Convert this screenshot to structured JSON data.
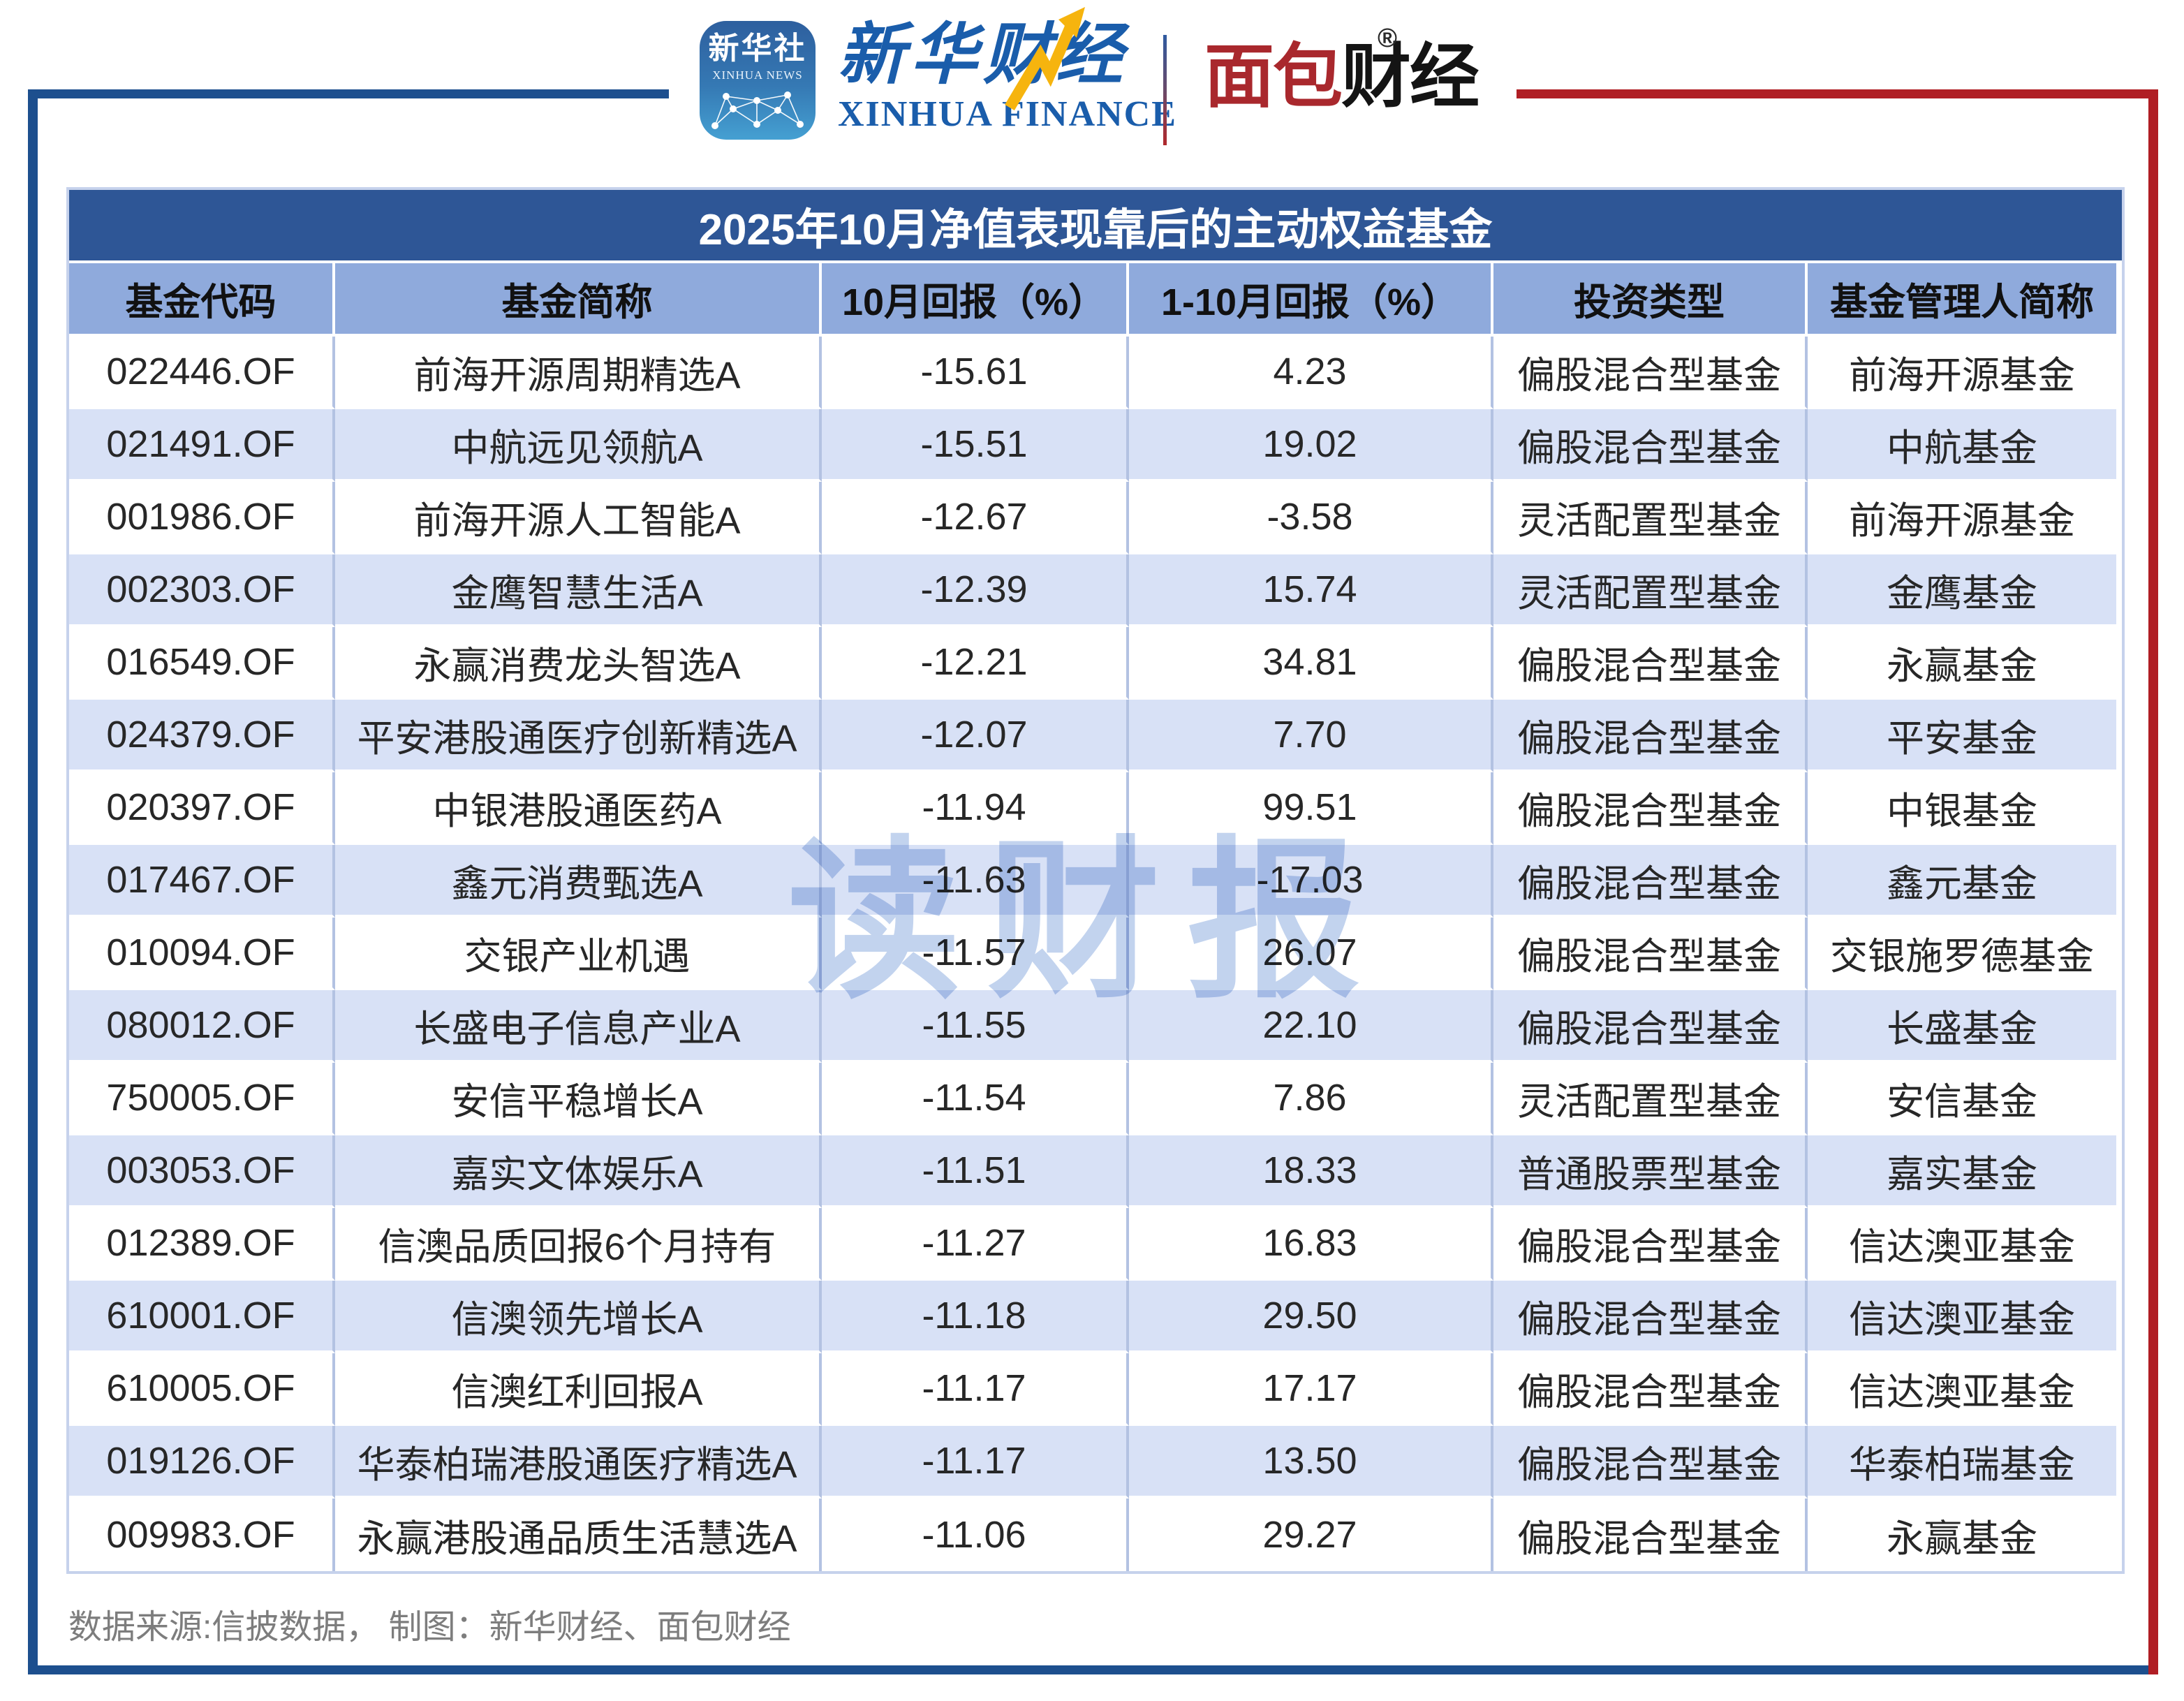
{
  "header": {
    "xinhua_news_icon": {
      "line1": "新华社",
      "line2": "XINHUA NEWS"
    },
    "xinhua_finance": {
      "cn": "新华财经",
      "en": "XINHUA FINANCE"
    },
    "mianbao_finance": {
      "cn_red": "面包",
      "cn_black": "财经",
      "reg_mark": "®"
    }
  },
  "chart_data": {
    "type": "table",
    "title": "2025年10月净值表现靠后的主动权益基金",
    "columns": [
      "基金代码",
      "基金简称",
      "10月回报（%）",
      "1-10月回报（%）",
      "投资类型",
      "基金管理人简称"
    ],
    "rows": [
      [
        "022446.OF",
        "前海开源周期精选A",
        "-15.61",
        "4.23",
        "偏股混合型基金",
        "前海开源基金"
      ],
      [
        "021491.OF",
        "中航远见领航A",
        "-15.51",
        "19.02",
        "偏股混合型基金",
        "中航基金"
      ],
      [
        "001986.OF",
        "前海开源人工智能A",
        "-12.67",
        "-3.58",
        "灵活配置型基金",
        "前海开源基金"
      ],
      [
        "002303.OF",
        "金鹰智慧生活A",
        "-12.39",
        "15.74",
        "灵活配置型基金",
        "金鹰基金"
      ],
      [
        "016549.OF",
        "永赢消费龙头智选A",
        "-12.21",
        "34.81",
        "偏股混合型基金",
        "永赢基金"
      ],
      [
        "024379.OF",
        "平安港股通医疗创新精选A",
        "-12.07",
        "7.70",
        "偏股混合型基金",
        "平安基金"
      ],
      [
        "020397.OF",
        "中银港股通医药A",
        "-11.94",
        "99.51",
        "偏股混合型基金",
        "中银基金"
      ],
      [
        "017467.OF",
        "鑫元消费甄选A",
        "-11.63",
        "-17.03",
        "偏股混合型基金",
        "鑫元基金"
      ],
      [
        "010094.OF",
        "交银产业机遇",
        "-11.57",
        "26.07",
        "偏股混合型基金",
        "交银施罗德基金"
      ],
      [
        "080012.OF",
        "长盛电子信息产业A",
        "-11.55",
        "22.10",
        "偏股混合型基金",
        "长盛基金"
      ],
      [
        "750005.OF",
        "安信平稳增长A",
        "-11.54",
        "7.86",
        "灵活配置型基金",
        "安信基金"
      ],
      [
        "003053.OF",
        "嘉实文体娱乐A",
        "-11.51",
        "18.33",
        "普通股票型基金",
        "嘉实基金"
      ],
      [
        "012389.OF",
        "信澳品质回报6个月持有",
        "-11.27",
        "16.83",
        "偏股混合型基金",
        "信达澳亚基金"
      ],
      [
        "610001.OF",
        "信澳领先增长A",
        "-11.18",
        "29.50",
        "偏股混合型基金",
        "信达澳亚基金"
      ],
      [
        "610005.OF",
        "信澳红利回报A",
        "-11.17",
        "17.17",
        "偏股混合型基金",
        "信达澳亚基金"
      ],
      [
        "019126.OF",
        "华泰柏瑞港股通医疗精选A",
        "-11.17",
        "13.50",
        "偏股混合型基金",
        "华泰柏瑞基金"
      ],
      [
        "009983.OF",
        "永赢港股通品质生活慧选A",
        "-11.06",
        "29.27",
        "偏股混合型基金",
        "永赢基金"
      ]
    ]
  },
  "watermark": "读财报",
  "footer": "数据来源:信披数据， 制图：新华财经、面包财经",
  "colors": {
    "frame_blue": "#1d4f8e",
    "frame_red": "#b01e24",
    "title_bg": "#2e5696",
    "header_bg": "#8faadc",
    "row_alt": "#d8e1f6",
    "grid_vertical": "#b3c2e2",
    "xinhua_blue": "#1a5dab",
    "mianbao_red": "#a9282d",
    "watermark": "#c2d3ee",
    "footer_gray": "#7d7d7d"
  }
}
